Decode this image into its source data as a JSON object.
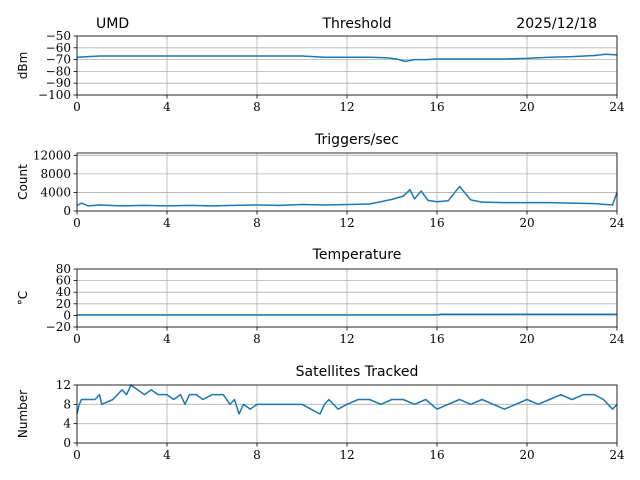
{
  "header": {
    "left": "UMD",
    "center": "Threshold",
    "right": "2025/12/18"
  },
  "colors": {
    "line": "#1f77b4",
    "grid": "#b0b0b0"
  },
  "chart_data": [
    {
      "type": "line",
      "title": "Threshold",
      "ylabel": "dBm",
      "xlim": [
        0,
        24
      ],
      "ylim": [
        -100,
        -50
      ],
      "xticks": [
        0,
        4,
        8,
        12,
        16,
        20,
        24
      ],
      "yticks": [
        -100,
        -90,
        -80,
        -70,
        -60,
        -50
      ],
      "grid": true,
      "series": [
        {
          "x": [
            0,
            1,
            2,
            3,
            4,
            5,
            6,
            7,
            8,
            9,
            10,
            11,
            12,
            13,
            13.8,
            14.2,
            14.6,
            15,
            15.5,
            16,
            17,
            18,
            19,
            20,
            21,
            22,
            23,
            23.5,
            24
          ],
          "values": [
            -68,
            -67,
            -67,
            -67,
            -67,
            -67,
            -67,
            -67,
            -67,
            -67,
            -67,
            -68,
            -68,
            -68,
            -68.5,
            -69.5,
            -71.5,
            -70,
            -70,
            -69.5,
            -69.5,
            -69.5,
            -69.5,
            -69,
            -68,
            -67.5,
            -66.5,
            -65.5,
            -66
          ]
        }
      ]
    },
    {
      "type": "line",
      "title": "Triggers/sec",
      "ylabel": "Count",
      "xlim": [
        0,
        24
      ],
      "ylim": [
        0,
        12500
      ],
      "xticks": [
        0,
        4,
        8,
        12,
        16,
        20,
        24
      ],
      "yticks": [
        0,
        4000,
        8000,
        12000
      ],
      "grid": true,
      "series": [
        {
          "x": [
            0,
            0.2,
            0.5,
            1,
            2,
            3,
            4,
            5,
            6,
            7,
            8,
            9,
            10,
            11,
            12,
            13,
            13.5,
            14,
            14.5,
            14.8,
            15,
            15.3,
            15.6,
            16,
            16.5,
            17,
            17.5,
            18,
            19,
            20,
            21,
            22,
            23,
            23.8,
            24
          ],
          "values": [
            1200,
            1700,
            1100,
            1300,
            1100,
            1200,
            1100,
            1200,
            1100,
            1200,
            1300,
            1200,
            1400,
            1300,
            1400,
            1500,
            2000,
            2500,
            3200,
            4600,
            2600,
            4300,
            2300,
            2000,
            2200,
            5300,
            2400,
            1900,
            1800,
            1800,
            1800,
            1700,
            1600,
            1300,
            4000
          ]
        }
      ]
    },
    {
      "type": "line",
      "title": "Temperature",
      "ylabel": "°C",
      "xlim": [
        0,
        24
      ],
      "ylim": [
        -20,
        80
      ],
      "xticks": [
        0,
        4,
        8,
        12,
        16,
        20,
        24
      ],
      "yticks": [
        -20,
        0,
        20,
        40,
        60,
        80
      ],
      "grid": true,
      "series": [
        {
          "x": [
            0,
            4,
            8,
            12,
            16,
            16.2,
            20,
            24
          ],
          "values": [
            1,
            1,
            1,
            1,
            1,
            2,
            2,
            2
          ]
        }
      ]
    },
    {
      "type": "line",
      "title": "Satellites Tracked",
      "ylabel": "Number",
      "xlim": [
        0,
        24
      ],
      "ylim": [
        0,
        12
      ],
      "xticks": [
        0,
        4,
        8,
        12,
        16,
        20,
        24
      ],
      "yticks": [
        0,
        4,
        8,
        12
      ],
      "grid": true,
      "series": [
        {
          "x": [
            0,
            0.1,
            0.2,
            0.8,
            1.0,
            1.1,
            1.6,
            1.8,
            2.0,
            2.2,
            2.4,
            2.7,
            3.0,
            3.3,
            3.6,
            4.0,
            4.3,
            4.6,
            4.8,
            5.0,
            5.3,
            5.6,
            6.0,
            6.5,
            6.8,
            7.0,
            7.2,
            7.4,
            7.7,
            8.0,
            8.5,
            9.0,
            9.5,
            10.0,
            10.4,
            10.8,
            11.0,
            11.2,
            11.6,
            12.0,
            12.5,
            13.0,
            13.5,
            14.0,
            14.5,
            15.0,
            15.5,
            16.0,
            16.5,
            17.0,
            17.5,
            18.0,
            18.5,
            19.0,
            19.5,
            20.0,
            20.5,
            21.0,
            21.5,
            22.0,
            22.5,
            23.0,
            23.4,
            23.8,
            24
          ],
          "values": [
            6,
            8,
            9,
            9,
            10,
            8,
            9,
            10,
            11,
            10,
            12,
            11,
            10,
            11,
            10,
            10,
            9,
            10,
            8,
            10,
            10,
            9,
            10,
            10,
            8,
            9,
            6,
            8,
            7,
            8,
            8,
            8,
            8,
            8,
            7,
            6,
            8,
            9,
            7,
            8,
            9,
            9,
            8,
            9,
            9,
            8,
            9,
            7,
            8,
            9,
            8,
            9,
            8,
            7,
            8,
            9,
            8,
            9,
            10,
            9,
            10,
            10,
            9,
            7,
            8
          ]
        }
      ]
    }
  ]
}
